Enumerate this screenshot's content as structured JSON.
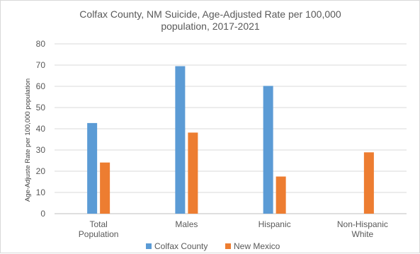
{
  "chart_data": {
    "type": "bar",
    "title_lines": [
      "Colfax County, NM Suicide, Age-Adjusted Rate per 100,000",
      "population, 2017-2021"
    ],
    "ylabel": "Age-Adjuste Rate per 100,000 population",
    "xlabel": "",
    "ylim": [
      0,
      80
    ],
    "yticks": [
      0,
      10,
      20,
      30,
      40,
      50,
      60,
      70,
      80
    ],
    "categories": [
      [
        "Total",
        "Population"
      ],
      [
        "Males"
      ],
      [
        "Hispanic"
      ],
      [
        "Non-Hispanic",
        "White"
      ]
    ],
    "series": [
      {
        "name": "Colfax County",
        "color": "#5b9bd5",
        "values": [
          42.7,
          69.5,
          60.2,
          null
        ]
      },
      {
        "name": "New Mexico",
        "color": "#ed7d31",
        "values": [
          24.1,
          38.2,
          17.5,
          28.9
        ]
      }
    ],
    "grid": true,
    "legend_position": "bottom"
  }
}
